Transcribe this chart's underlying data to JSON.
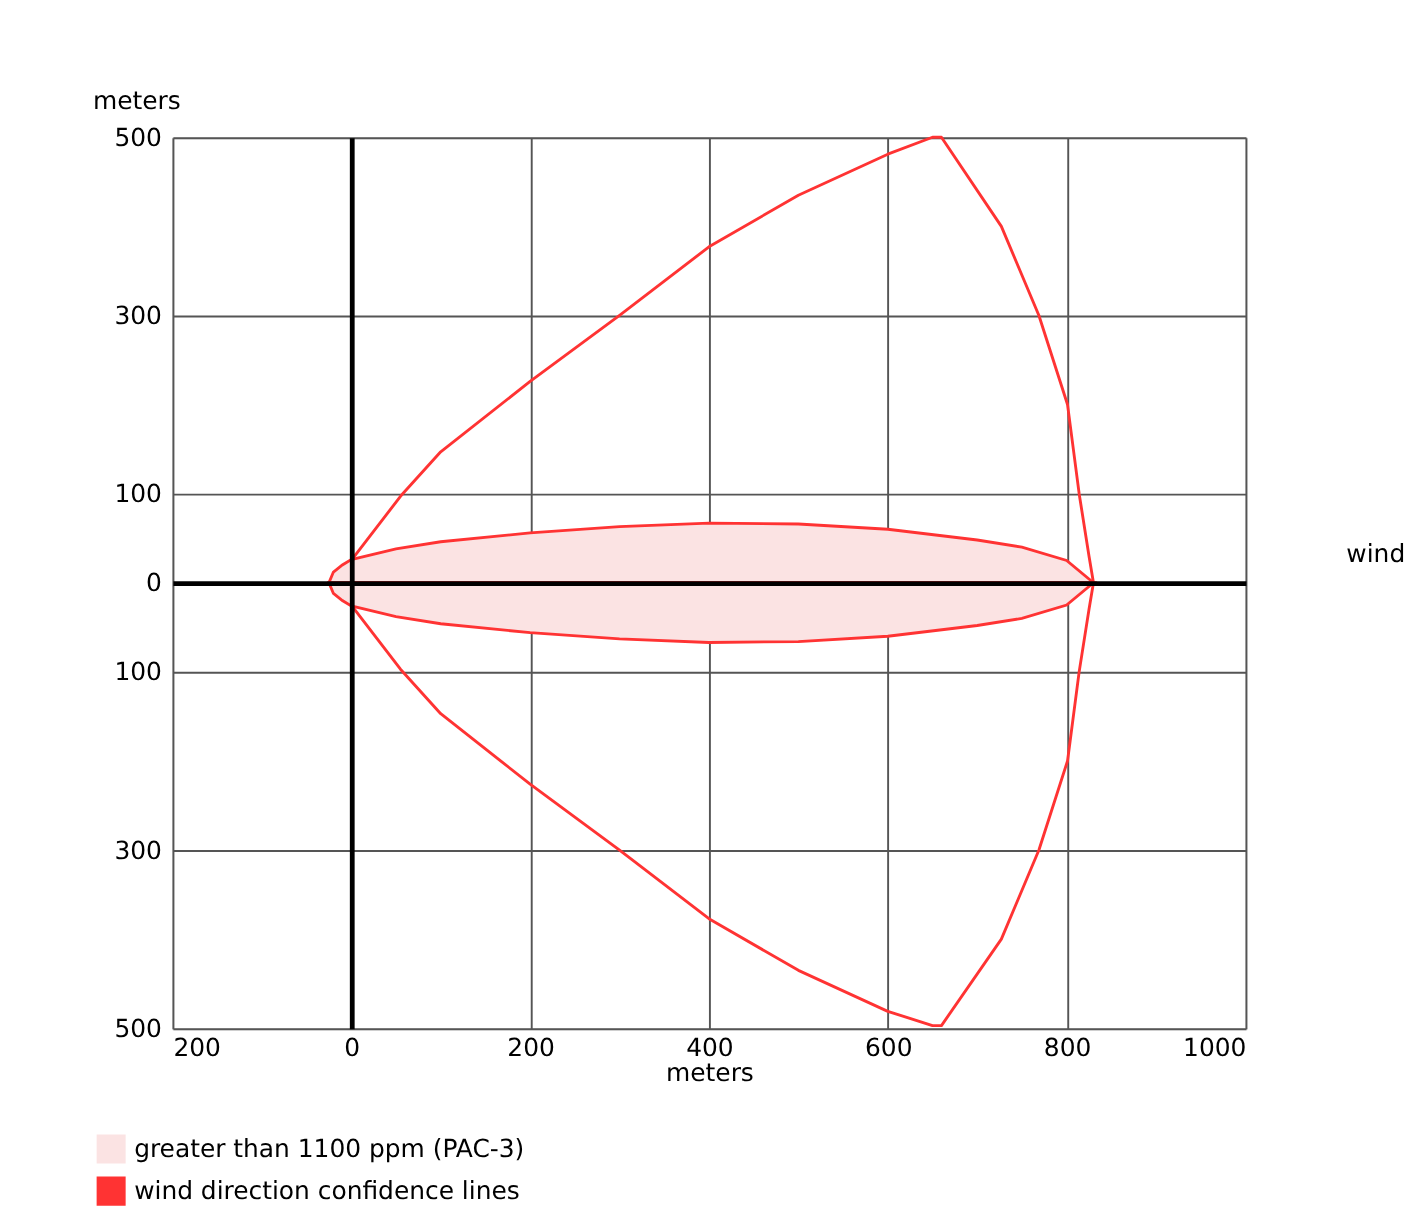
{
  "chart_data": {
    "type": "area",
    "xlabel": "meters",
    "ylabel": "meters",
    "xlim": [
      -200,
      1000
    ],
    "xticks": [
      {
        "value": -200,
        "label": "200"
      },
      0,
      200,
      400,
      600,
      800,
      1000
    ],
    "ylim": [
      -500,
      500
    ],
    "yticks": [
      500,
      300,
      100,
      0,
      {
        "value": -100,
        "label": "100"
      },
      {
        "value": -300,
        "label": "300"
      },
      {
        "value": -500,
        "label": "500"
      }
    ],
    "grid": true,
    "legend": "bottom left",
    "series": [
      {
        "name": "greater than 1100 ppm (PAC-3)",
        "color": "#fbe3e3",
        "x": [
          -25,
          -20,
          -10,
          0,
          50,
          100,
          200,
          300,
          400,
          500,
          600,
          700,
          750,
          800,
          830
        ],
        "values": [
          0,
          12,
          20,
          26,
          38,
          46,
          56,
          63,
          67,
          66,
          60,
          48,
          40,
          25,
          0
        ]
      },
      {
        "type": "area",
        "color": "#fbe3e3",
        "x": [
          -25,
          -20,
          -10,
          0,
          50,
          100,
          200,
          300,
          400,
          500,
          600,
          700,
          750,
          800,
          830
        ],
        "values": [
          0,
          -12,
          -20,
          -26,
          -38,
          -46,
          -56,
          -63,
          -67,
          -66,
          -60,
          -48,
          -40,
          -25,
          0
        ]
      },
      {
        "name": "wind direction confidence lines",
        "type": "line",
        "color": "#ff3333",
        "x": [
          0,
          55,
          100,
          200,
          300,
          400,
          500,
          600,
          650,
          660,
          727,
          769,
          801,
          814,
          825,
          830,
          825,
          814,
          801,
          769,
          727,
          660,
          650,
          600,
          500,
          400,
          300,
          200,
          100,
          55,
          0
        ],
        "values": [
          25,
          97,
          147,
          226,
          300,
          377,
          435,
          481,
          500,
          500,
          400,
          300,
          200,
          100,
          30,
          0,
          -30,
          -100,
          -200,
          -300,
          -400,
          -497,
          -497,
          -481,
          -435,
          -377,
          -300,
          -226,
          -147,
          -97,
          -25
        ]
      }
    ],
    "annotations": [
      "wind"
    ]
  }
}
